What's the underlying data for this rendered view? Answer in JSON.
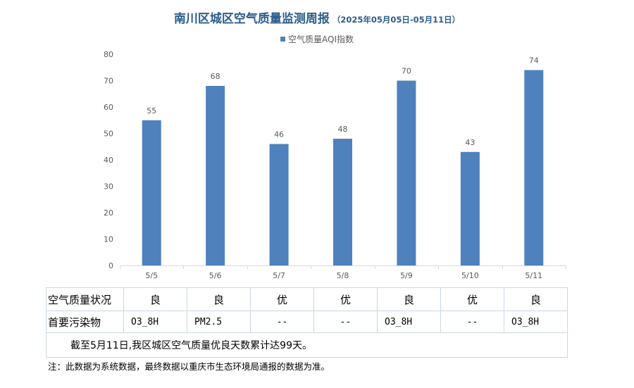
{
  "header": {
    "title": "南川区城区空气质量监测周报",
    "subtitle": "（2025年05月05日-05月11日）"
  },
  "chart_data": {
    "type": "bar",
    "categories": [
      "5/5",
      "5/6",
      "5/7",
      "5/8",
      "5/9",
      "5/10",
      "5/11"
    ],
    "series": [
      {
        "name": "空气质量AQI指数",
        "values": [
          55,
          68,
          46,
          48,
          70,
          43,
          74
        ]
      }
    ],
    "ylim": [
      0,
      80
    ],
    "yticks": [
      0,
      10,
      20,
      30,
      40,
      50,
      60,
      70,
      80
    ],
    "grid": false,
    "legend_position": "top-center",
    "bar_color": "#4F81BD"
  },
  "summary_table": {
    "row_quality_label": "空气质量状况",
    "quality": [
      "良",
      "良",
      "优",
      "优",
      "良",
      "优",
      "良"
    ],
    "row_pollutant_label": "首要污染物",
    "pollutant": [
      "O3_8H",
      "PM2.5",
      "--",
      "--",
      "O3_8H",
      "--",
      "O3_8H"
    ],
    "note": "截至5月11日,我区城区空气质量优良天数累计达99天。"
  },
  "footnote": "注：此数据为系统数据，最终数据以重庆市生态环境局通报的数据为准。"
}
